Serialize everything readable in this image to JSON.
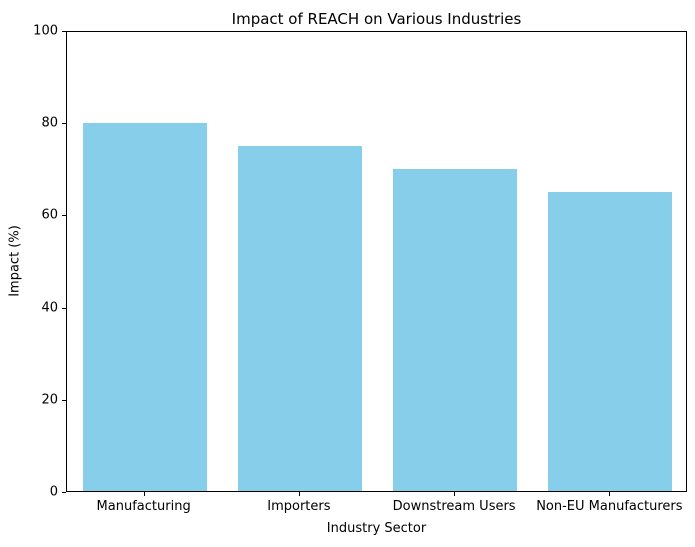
{
  "chart_data": {
    "type": "bar",
    "title": "Impact of REACH on Various Industries",
    "xlabel": "Industry Sector",
    "ylabel": "Impact (%)",
    "categories": [
      "Manufacturing",
      "Importers",
      "Downstream Users",
      "Non-EU Manufacturers"
    ],
    "values": [
      80,
      75,
      70,
      65
    ],
    "ylim": [
      0,
      100
    ],
    "yticks": [
      0,
      20,
      40,
      60,
      80,
      100
    ],
    "bar_color": "#87CEEB",
    "spine_color": "#000000",
    "background_color": "#ffffff",
    "bar_width_fraction": 0.8,
    "grid": false,
    "legend": "none"
  }
}
